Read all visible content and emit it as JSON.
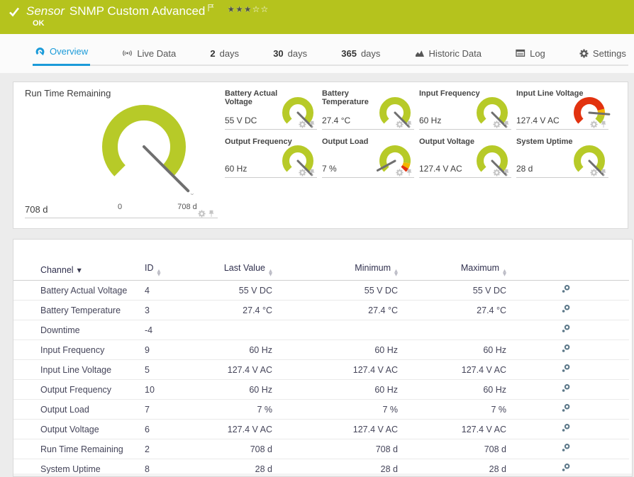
{
  "colors": {
    "header_green": "#b5c31d",
    "accent_blue": "#1b9bd9",
    "green": "#b7ca28",
    "red": "#e2320f",
    "yellow": "#f2b600",
    "needle": "#6f6f6f"
  },
  "header": {
    "title_italic": "Sensor",
    "title": "SNMP Custom Advanced",
    "status": "OK",
    "stars_filled": 3,
    "stars_total": 5
  },
  "tabs": [
    {
      "name": "overview",
      "icon": "gauge",
      "label": "Overview",
      "active": true
    },
    {
      "name": "live-data",
      "icon": "broadcast",
      "label": "Live Data"
    },
    {
      "name": "2-days",
      "bold": "2",
      "label": "days"
    },
    {
      "name": "30-days",
      "bold": "30",
      "label": "days"
    },
    {
      "name": "365-days",
      "bold": "365",
      "label": "days"
    },
    {
      "name": "historic-data",
      "icon": "chart",
      "label": "Historic Data"
    },
    {
      "name": "log",
      "icon": "log",
      "label": "Log"
    },
    {
      "name": "settings",
      "icon": "gear",
      "label": "Settings"
    }
  ],
  "panel": {
    "main_gauge": {
      "title": "Run Time Remaining",
      "value": "708 d",
      "min_label": "0",
      "max_label": "708 d",
      "needle": 1,
      "segments": [
        {
          "from": 0,
          "to": 1,
          "color": "green"
        }
      ]
    },
    "small_gauges": [
      {
        "title": "Battery Actual Voltage",
        "value": "55 V DC",
        "needle": 1,
        "segments": [
          {
            "from": 0,
            "to": 1,
            "color": "green"
          }
        ]
      },
      {
        "title": "Battery Temperature",
        "value": "27.4 °C",
        "needle": 1,
        "segments": [
          {
            "from": 0,
            "to": 1,
            "color": "green"
          }
        ]
      },
      {
        "title": "Input Frequency",
        "value": "60 Hz",
        "needle": 1,
        "segments": [
          {
            "from": 0,
            "to": 1,
            "color": "green"
          }
        ]
      },
      {
        "title": "Input Line Voltage",
        "value": "127.4 V AC",
        "needle": 0.85,
        "segments": [
          {
            "from": 0,
            "to": 0.78,
            "color": "red"
          },
          {
            "from": 0.78,
            "to": 0.88,
            "color": "yellow"
          },
          {
            "from": 0.88,
            "to": 1,
            "color": "green"
          }
        ]
      },
      {
        "title": "Output Frequency",
        "value": "60 Hz",
        "needle": 1,
        "segments": [
          {
            "from": 0,
            "to": 1,
            "color": "green"
          }
        ]
      },
      {
        "title": "Output Load",
        "value": "7 %",
        "needle": 0.06,
        "segments": [
          {
            "from": 0,
            "to": 0.87,
            "color": "green"
          },
          {
            "from": 0.87,
            "to": 0.945,
            "color": "yellow"
          },
          {
            "from": 0.945,
            "to": 1,
            "color": "red"
          }
        ]
      },
      {
        "title": "Output Voltage",
        "value": "127.4 V AC",
        "needle": 1,
        "segments": [
          {
            "from": 0,
            "to": 1,
            "color": "green"
          }
        ]
      },
      {
        "title": "System Uptime",
        "value": "28 d",
        "needle": 1,
        "segments": [
          {
            "from": 0,
            "to": 1,
            "color": "green"
          }
        ]
      }
    ]
  },
  "table": {
    "headers": [
      {
        "label": "Channel",
        "sort": "desc"
      },
      {
        "label": "ID",
        "sort": "both"
      },
      {
        "label": "Last Value",
        "sort": "both"
      },
      {
        "label": "Minimum",
        "sort": "both"
      },
      {
        "label": "Maximum",
        "sort": "both"
      }
    ],
    "rows": [
      {
        "channel": "Battery Actual Voltage",
        "id": "4",
        "last_value": "55 V DC",
        "minimum": "55 V DC",
        "maximum": "55 V DC"
      },
      {
        "channel": "Battery Temperature",
        "id": "3",
        "last_value": "27.4 °C",
        "minimum": "27.4 °C",
        "maximum": "27.4 °C"
      },
      {
        "channel": "Downtime",
        "id": "-4",
        "last_value": "",
        "minimum": "",
        "maximum": ""
      },
      {
        "channel": "Input Frequency",
        "id": "9",
        "last_value": "60 Hz",
        "minimum": "60 Hz",
        "maximum": "60 Hz"
      },
      {
        "channel": "Input Line Voltage",
        "id": "5",
        "last_value": "127.4 V AC",
        "minimum": "127.4 V AC",
        "maximum": "127.4 V AC"
      },
      {
        "channel": "Output Frequency",
        "id": "10",
        "last_value": "60 Hz",
        "minimum": "60 Hz",
        "maximum": "60 Hz"
      },
      {
        "channel": "Output Load",
        "id": "7",
        "last_value": "7 %",
        "minimum": "7 %",
        "maximum": "7 %"
      },
      {
        "channel": "Output Voltage",
        "id": "6",
        "last_value": "127.4 V AC",
        "minimum": "127.4 V AC",
        "maximum": "127.4 V AC"
      },
      {
        "channel": "Run Time Remaining",
        "id": "2",
        "last_value": "708 d",
        "minimum": "708 d",
        "maximum": "708 d"
      },
      {
        "channel": "System Uptime",
        "id": "8",
        "last_value": "28 d",
        "minimum": "28 d",
        "maximum": "28 d"
      }
    ]
  }
}
